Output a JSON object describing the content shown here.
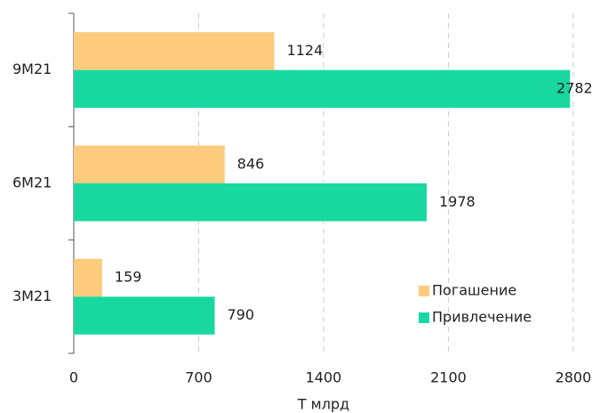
{
  "chart_data": {
    "type": "bar",
    "orientation": "horizontal",
    "categories": [
      "9M21",
      "6M21",
      "3M21"
    ],
    "series": [
      {
        "name": "Погашение",
        "color": "#fdcb7e",
        "values": [
          1124,
          846,
          159
        ]
      },
      {
        "name": "Привлечение",
        "color": "#18d8a0",
        "values": [
          2782,
          1978,
          790
        ]
      }
    ],
    "xlabel": "Т млрд",
    "xlim": [
      0,
      2900
    ],
    "xticks": [
      0,
      700,
      1400,
      2100,
      2800
    ],
    "grid": true,
    "legend": "lower right"
  }
}
